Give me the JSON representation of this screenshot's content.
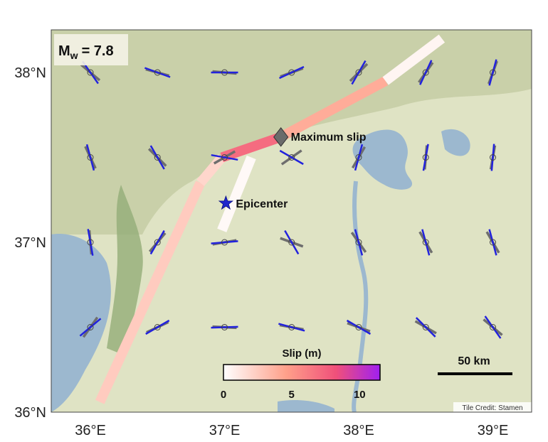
{
  "magnitude": {
    "symbol": "M",
    "subscript": "w",
    "value": "= 7.8"
  },
  "annotations": {
    "max_slip": "Maximum slip",
    "epicenter": "Epicenter"
  },
  "axes": {
    "lat_ticks": [
      {
        "deg": 38,
        "label": "38°N"
      },
      {
        "deg": 37,
        "label": "37°N"
      },
      {
        "deg": 36,
        "label": "36°N"
      }
    ],
    "lon_ticks": [
      {
        "deg": 36,
        "label": "36°E"
      },
      {
        "deg": 37,
        "label": "37°E"
      },
      {
        "deg": 38,
        "label": "38°E"
      },
      {
        "deg": 39,
        "label": "39°E"
      }
    ]
  },
  "colorbar": {
    "title": "Slip (m)",
    "ticks": [
      "0",
      "5",
      "10"
    ],
    "min": 0,
    "max": 11.5,
    "colors": [
      "#ffffff",
      "#ffa08a",
      "#f0507a",
      "#a020f0"
    ]
  },
  "scalebar": {
    "label": "50 km"
  },
  "credit": "Tile Credit: Stamen",
  "colors": {
    "arrow_primary": "#2222dd",
    "arrow_secondary": "#6e6e6e",
    "star": "#1f26cc",
    "diamond": "#6b6b6b",
    "water": "#9cb8cf",
    "land": "#dfe3c4"
  },
  "epicenter": {
    "lon": 37.01,
    "lat": 37.23
  },
  "max_slip": {
    "lon": 37.42,
    "lat": 37.62
  },
  "fault_segments": [
    {
      "lon1": 36.07,
      "lat1": 36.06,
      "lon2": 36.82,
      "lat2": 37.35,
      "slip": 2.5
    },
    {
      "lon1": 36.82,
      "lat1": 37.35,
      "lon2": 36.98,
      "lat2": 37.5,
      "slip": 2
    },
    {
      "lon1": 36.98,
      "lat1": 37.5,
      "lon2": 37.42,
      "lat2": 37.62,
      "slip": 7
    },
    {
      "lon1": 37.42,
      "lat1": 37.62,
      "lon2": 38.2,
      "lat2": 37.95,
      "slip": 4
    },
    {
      "lon1": 38.2,
      "lat1": 37.95,
      "lon2": 38.62,
      "lat2": 38.2,
      "slip": 0.5
    },
    {
      "lon1": 37.2,
      "lat1": 37.5,
      "lon2": 36.98,
      "lat2": 37.07,
      "slip": 0.3
    }
  ],
  "strain_crosses": [
    {
      "lon": 36.0,
      "lat": 38.0,
      "a1": -55,
      "a2": -40
    },
    {
      "lon": 36.5,
      "lat": 38.0,
      "a1": -20,
      "a2": -15
    },
    {
      "lon": 37.0,
      "lat": 38.0,
      "a1": 0,
      "a2": -5
    },
    {
      "lon": 37.5,
      "lat": 38.0,
      "a1": 25,
      "a2": 20
    },
    {
      "lon": 38.0,
      "lat": 38.0,
      "a1": 60,
      "a2": 45
    },
    {
      "lon": 38.5,
      "lat": 38.0,
      "a1": 65,
      "a2": 55
    },
    {
      "lon": 39.0,
      "lat": 38.0,
      "a1": 75,
      "a2": 70
    },
    {
      "lon": 36.0,
      "lat": 37.5,
      "a1": -75,
      "a2": -65
    },
    {
      "lon": 36.5,
      "lat": 37.5,
      "a1": -60,
      "a2": -45
    },
    {
      "lon": 37.0,
      "lat": 37.5,
      "a1": -10,
      "a2": 30
    },
    {
      "lon": 37.5,
      "lat": 37.5,
      "a1": -30,
      "a2": 35
    },
    {
      "lon": 38.0,
      "lat": 37.5,
      "a1": 75,
      "a2": 60
    },
    {
      "lon": 38.5,
      "lat": 37.5,
      "a1": 80,
      "a2": 85
    },
    {
      "lon": 39.0,
      "lat": 37.5,
      "a1": 85,
      "a2": 80
    },
    {
      "lon": 36.0,
      "lat": 37.0,
      "a1": -80,
      "a2": -85
    },
    {
      "lon": 36.5,
      "lat": 37.0,
      "a1": 60,
      "a2": 50
    },
    {
      "lon": 37.0,
      "lat": 37.0,
      "a1": 5,
      "a2": 10
    },
    {
      "lon": 37.5,
      "lat": 37.0,
      "a1": -60,
      "a2": -20
    },
    {
      "lon": 38.0,
      "lat": 37.0,
      "a1": -75,
      "a2": -55
    },
    {
      "lon": 38.5,
      "lat": 37.0,
      "a1": -75,
      "a2": -60
    },
    {
      "lon": 39.0,
      "lat": 37.0,
      "a1": -75,
      "a2": -60
    },
    {
      "lon": 36.0,
      "lat": 36.5,
      "a1": 40,
      "a2": 55
    },
    {
      "lon": 36.5,
      "lat": 36.5,
      "a1": 30,
      "a2": 25
    },
    {
      "lon": 37.0,
      "lat": 36.5,
      "a1": 2,
      "a2": -3
    },
    {
      "lon": 37.5,
      "lat": 36.5,
      "a1": -15,
      "a2": -10
    },
    {
      "lon": 38.0,
      "lat": 36.5,
      "a1": -30,
      "a2": -20
    },
    {
      "lon": 38.5,
      "lat": 36.5,
      "a1": -45,
      "a2": -30
    },
    {
      "lon": 39.0,
      "lat": 36.5,
      "a1": -55,
      "a2": -40
    }
  ]
}
